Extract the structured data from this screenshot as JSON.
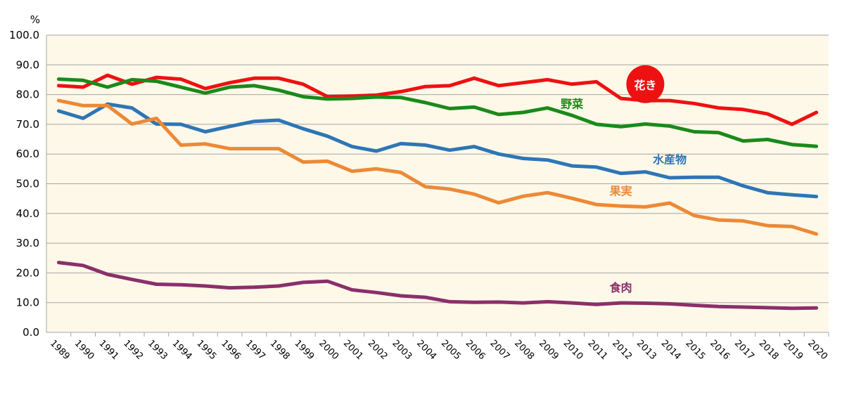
{
  "chart_data": {
    "type": "line",
    "unit": "%",
    "ylim": [
      0,
      100
    ],
    "yticks": [
      "0.0",
      "10.0",
      "20.0",
      "30.0",
      "40.0",
      "50.0",
      "60.0",
      "70.0",
      "80.0",
      "90.0",
      "100.0"
    ],
    "grid": true,
    "x": [
      "1989",
      "1990",
      "1991",
      "1992",
      "1993",
      "1994",
      "1995",
      "1996",
      "1997",
      "1998",
      "1999",
      "2000",
      "2001",
      "2002",
      "2003",
      "2004",
      "2005",
      "2006",
      "2007",
      "2008",
      "2009",
      "2010",
      "2011",
      "2012",
      "2013",
      "2014",
      "2015",
      "2016",
      "2017",
      "2018",
      "2019",
      "2020"
    ],
    "series": [
      {
        "name": "花き",
        "color": "#ee1111",
        "label_style": "circle",
        "values": [
          83.0,
          82.5,
          86.5,
          83.5,
          85.8,
          85.2,
          82.0,
          84.0,
          85.5,
          85.5,
          83.5,
          79.3,
          79.5,
          79.8,
          81.0,
          82.7,
          83.0,
          85.5,
          83.0,
          84.0,
          85.0,
          83.5,
          84.3,
          78.7,
          78.0,
          78.0,
          77.0,
          75.5,
          75.0,
          73.5,
          70.0,
          74.0
        ]
      },
      {
        "name": "野菜",
        "color": "#1a8a1a",
        "label_style": "text",
        "values": [
          85.2,
          84.8,
          82.5,
          85.0,
          84.5,
          82.5,
          80.5,
          82.5,
          83.0,
          81.5,
          79.3,
          78.5,
          78.7,
          79.2,
          79.0,
          77.3,
          75.3,
          75.8,
          73.3,
          74.0,
          75.5,
          73.0,
          70.0,
          69.2,
          70.1,
          69.4,
          67.5,
          67.2,
          64.4,
          64.9,
          63.2,
          62.6
        ]
      },
      {
        "name": "水産物",
        "color": "#2e75b6",
        "label_style": "text",
        "values": [
          74.5,
          72.0,
          76.8,
          75.5,
          70.1,
          70.0,
          67.5,
          69.3,
          71.0,
          71.4,
          68.5,
          66.0,
          62.5,
          61.0,
          63.5,
          63.0,
          61.3,
          62.5,
          60.0,
          58.5,
          58.0,
          56.0,
          55.6,
          53.5,
          54.0,
          52.0,
          52.2,
          52.2,
          49.3,
          47.0,
          46.3,
          45.7
        ]
      },
      {
        "name": "果実",
        "color": "#ed8936",
        "label_style": "text",
        "values": [
          78.0,
          76.3,
          76.3,
          70.1,
          72.0,
          63.0,
          63.4,
          61.8,
          61.8,
          61.8,
          57.3,
          57.6,
          54.2,
          55.0,
          53.8,
          49.0,
          48.2,
          46.5,
          43.6,
          45.8,
          47.0,
          45.1,
          43.0,
          42.5,
          42.2,
          43.5,
          39.3,
          37.8,
          37.5,
          35.9,
          35.6,
          33.1
        ]
      },
      {
        "name": "食肉",
        "color": "#8b2f6b",
        "label_style": "text",
        "values": [
          23.5,
          22.5,
          19.5,
          17.8,
          16.2,
          16.0,
          15.6,
          15.0,
          15.2,
          15.6,
          16.8,
          17.2,
          14.3,
          13.4,
          12.3,
          11.8,
          10.3,
          10.1,
          10.2,
          9.9,
          10.3,
          9.9,
          9.4,
          9.9,
          9.8,
          9.6,
          9.1,
          8.7,
          8.5,
          8.3,
          8.1,
          8.2
        ]
      }
    ],
    "label_positions": [
      {
        "series": 0,
        "at": 2013,
        "value": 83.5
      },
      {
        "series": 1,
        "at": 2010,
        "value": 75.5
      },
      {
        "series": 2,
        "at": 2014,
        "value": 56.8
      },
      {
        "series": 3,
        "at": 2012,
        "value": 46.2
      },
      {
        "series": 4,
        "at": 2012,
        "value": 13.7
      }
    ]
  }
}
